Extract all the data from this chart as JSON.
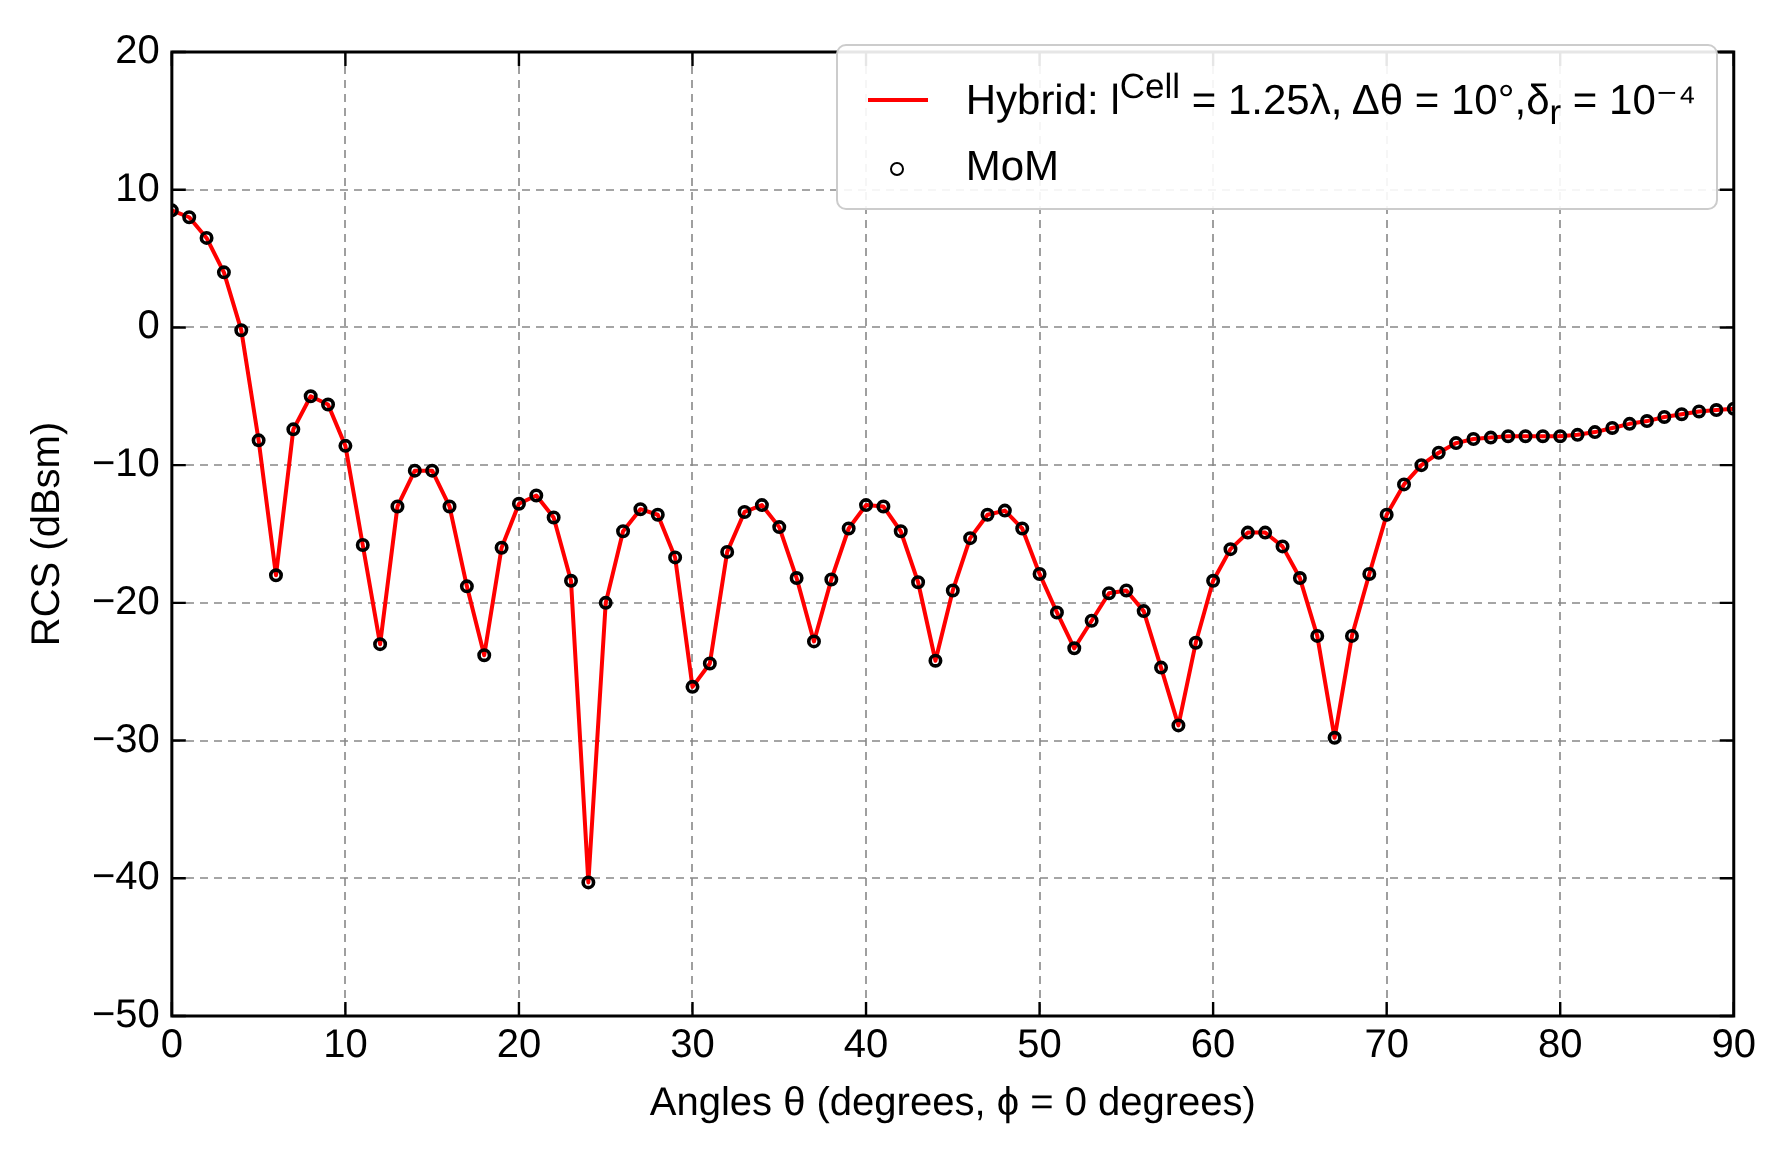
{
  "chart_data": {
    "type": "line",
    "xlabel": "Angles θ (degrees, ϕ = 0 degrees)",
    "ylabel": "RCS (dBsm)",
    "x": [
      0,
      1,
      2,
      3,
      4,
      5,
      6,
      7,
      8,
      9,
      10,
      11,
      12,
      13,
      14,
      15,
      16,
      17,
      18,
      19,
      20,
      21,
      22,
      23,
      24,
      25,
      26,
      27,
      28,
      29,
      30,
      31,
      32,
      33,
      34,
      35,
      36,
      37,
      38,
      39,
      40,
      41,
      42,
      43,
      44,
      45,
      46,
      47,
      48,
      49,
      50,
      51,
      52,
      53,
      54,
      55,
      56,
      57,
      58,
      59,
      60,
      61,
      62,
      63,
      64,
      65,
      66,
      67,
      68,
      69,
      70,
      71,
      72,
      73,
      74,
      75,
      76,
      77,
      78,
      79,
      80,
      81,
      82,
      83,
      84,
      85,
      86,
      87,
      88,
      89,
      90
    ],
    "series": [
      {
        "name": "Hybrid: l$^{Cell}$ = 1.25λ, Δθ = 10°,δ$_{r}$ = 10⁻⁴",
        "type": "line",
        "color": "#ff0000",
        "marker": "none",
        "values": [
          8.5,
          8,
          6.5,
          4,
          -0.2,
          -8.2,
          -18,
          -7.4,
          -5,
          -5.6,
          -8.6,
          -15.8,
          -23,
          -13,
          -10.4,
          -10.4,
          -13,
          -18.8,
          -23.8,
          -16,
          -12.8,
          -12.2,
          -13.8,
          -18.4,
          -40.3,
          -20,
          -14.8,
          -13.2,
          -13.6,
          -16.7,
          -26.1,
          -24.4,
          -16.3,
          -13.4,
          -12.9,
          -14.5,
          -18.2,
          -22.8,
          -18.3,
          -14.6,
          -12.9,
          -13,
          -14.8,
          -18.5,
          -24.2,
          -19.1,
          -15.3,
          -13.6,
          -13.3,
          -14.6,
          -17.9,
          -20.7,
          -23.3,
          -21.3,
          -19.3,
          -19.1,
          -20.6,
          -24.7,
          -28.9,
          -22.9,
          -18.4,
          -16.1,
          -14.9,
          -14.9,
          -15.9,
          -18.2,
          -22.4,
          -29.8,
          -22.4,
          -17.9,
          -13.6,
          -11.4,
          -10,
          -9.1,
          -8.4,
          -8.1,
          -8,
          -7.9,
          -7.9,
          -7.9,
          -7.9,
          -7.8,
          -7.6,
          -7.3,
          -7,
          -6.8,
          -6.5,
          -6.3,
          -6.1,
          -6,
          -5.9
        ]
      },
      {
        "name": "MoM",
        "type": "scatter",
        "color": "#000000",
        "marker": "circle",
        "values": [
          8.5,
          8,
          6.5,
          4,
          -0.2,
          -8.2,
          -18,
          -7.4,
          -5,
          -5.6,
          -8.6,
          -15.8,
          -23,
          -13,
          -10.4,
          -10.4,
          -13,
          -18.8,
          -23.8,
          -16,
          -12.8,
          -12.2,
          -13.8,
          -18.4,
          -40.3,
          -20,
          -14.8,
          -13.2,
          -13.6,
          -16.7,
          -26.1,
          -24.4,
          -16.3,
          -13.4,
          -12.9,
          -14.5,
          -18.2,
          -22.8,
          -18.3,
          -14.6,
          -12.9,
          -13,
          -14.8,
          -18.5,
          -24.2,
          -19.1,
          -15.3,
          -13.6,
          -13.3,
          -14.6,
          -17.9,
          -20.7,
          -23.3,
          -21.3,
          -19.3,
          -19.1,
          -20.6,
          -24.7,
          -28.9,
          -22.9,
          -18.4,
          -16.1,
          -14.9,
          -14.9,
          -15.9,
          -18.2,
          -22.4,
          -29.8,
          -22.4,
          -17.9,
          -13.6,
          -11.4,
          -10,
          -9.1,
          -8.4,
          -8.1,
          -8,
          -7.9,
          -7.9,
          -7.9,
          -7.9,
          -7.8,
          -7.6,
          -7.3,
          -7,
          -6.8,
          -6.5,
          -6.3,
          -6.1,
          -6,
          -5.9
        ]
      }
    ],
    "xlim": [
      0,
      90
    ],
    "xticks": [
      0,
      10,
      20,
      30,
      40,
      50,
      60,
      70,
      80,
      90
    ],
    "ylim": [
      -50,
      20
    ],
    "yticks": [
      {
        "value": -50,
        "label": "−50"
      },
      {
        "value": -40,
        "label": "−40"
      },
      {
        "value": -30,
        "label": "−30"
      },
      {
        "value": -20,
        "label": "−20"
      },
      {
        "value": -10,
        "label": "−10"
      },
      0,
      10,
      20
    ],
    "grid": true,
    "legend": "top right"
  }
}
